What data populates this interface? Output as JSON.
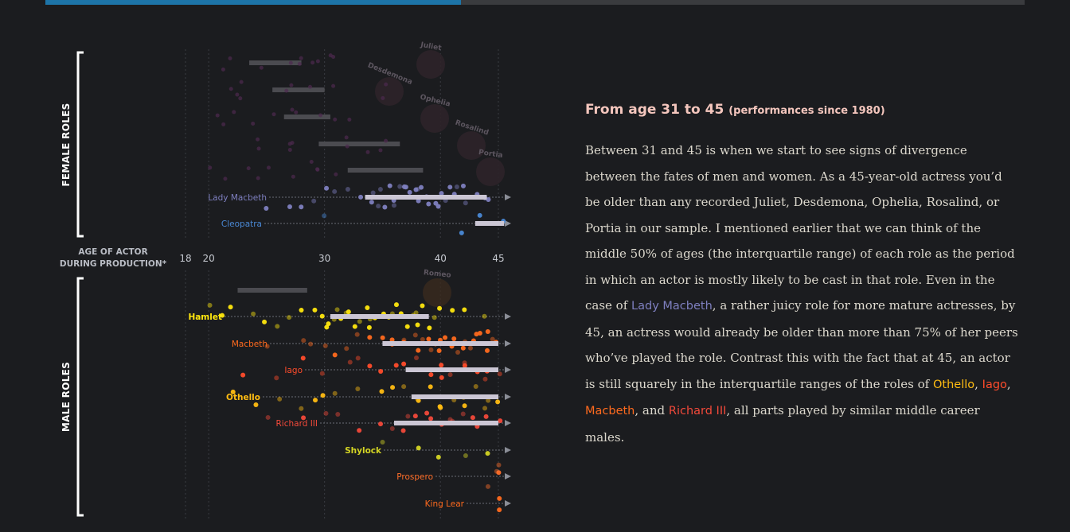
{
  "progress": {
    "fraction": 0.4243
  },
  "group_labels": {
    "female": "FEMALE ROLES",
    "male": "MALE ROLES"
  },
  "colors": {
    "lady_macbeth": "#7e7fbf",
    "cleopatra": "#4a89d6",
    "hamlet": "#ffe70e",
    "macbeth": "#ff6a1e",
    "iago": "#ff4c2b",
    "othello": "#ffbc12",
    "richard": "#f2493a",
    "shylock": "#d4d524",
    "prospero": "#ff6f2a",
    "king_lear": "#ff6a1e",
    "iqr_bar": "#cbc6d4",
    "ghost_bar": "#4b4b50"
  },
  "chart_data": {
    "type": "scatter",
    "title": "",
    "xlabel": "AGE OF ACTOR DURING PRODUCTION*",
    "ylabel": "",
    "xlim": [
      16,
      47
    ],
    "x_ticks": [
      18,
      20,
      30,
      40,
      45
    ],
    "grid": true,
    "ghost_roles": [
      {
        "name": "Juliet",
        "iqr": [
          23.5,
          28
        ]
      },
      {
        "name": "Desdemona",
        "iqr": [
          25.5,
          30
        ]
      },
      {
        "name": "Ophelia",
        "iqr": [
          26.5,
          30.5
        ]
      },
      {
        "name": "Rosalind",
        "iqr": [
          29.5,
          36.5
        ]
      },
      {
        "name": "Portia",
        "iqr": [
          32,
          38.5
        ]
      }
    ],
    "female_roles": [
      {
        "name": "Lady Macbeth",
        "color_key": "lady_macbeth",
        "iqr": [
          33.5,
          44
        ],
        "ages": [
          30,
          31,
          34,
          34.5,
          35,
          35.5,
          36,
          36.5,
          37,
          37.5,
          38,
          38.5,
          39,
          39.5,
          40,
          40.5,
          41,
          41.5,
          42,
          43,
          44,
          27,
          28,
          25,
          33,
          35,
          36,
          37,
          38,
          39,
          40,
          41,
          29,
          32,
          34,
          36,
          38,
          42,
          44
        ]
      },
      {
        "name": "Cleopatra",
        "color_key": "cleopatra",
        "iqr": [
          43,
          45.5
        ],
        "ages": [
          30,
          42,
          43.5,
          45.5
        ]
      }
    ],
    "male_roles": [
      {
        "name": "Hamlet",
        "color_key": "hamlet",
        "iqr": [
          30.5,
          39
        ],
        "ages": [
          20,
          21,
          22,
          24,
          25,
          27,
          28,
          29,
          30,
          30.5,
          31,
          31.5,
          32,
          32.5,
          33,
          33.5,
          34,
          34.5,
          35,
          35.5,
          36,
          36.5,
          37,
          37.5,
          38,
          38.5,
          39,
          39.5,
          40,
          41,
          42,
          44,
          30,
          31,
          32,
          34,
          36,
          38,
          26
        ]
      },
      {
        "name": "Macbeth",
        "color_key": "macbeth",
        "iqr": [
          35,
          45
        ],
        "ages": [
          25,
          28,
          30,
          32,
          33,
          35,
          36,
          37,
          38,
          38.5,
          39,
          39.5,
          40,
          40.5,
          41,
          41.5,
          42,
          42.5,
          43,
          43.5,
          44,
          44.5,
          45,
          38,
          39,
          40,
          41,
          42,
          43,
          44,
          36,
          37,
          29,
          31,
          34
        ]
      },
      {
        "name": "Iago",
        "color_key": "iago",
        "iqr": [
          37,
          45
        ],
        "ages": [
          23,
          26,
          28,
          30,
          32,
          33,
          35,
          37,
          38,
          39,
          40,
          41,
          42,
          43,
          44,
          45,
          34,
          36,
          38,
          40,
          42,
          44
        ]
      },
      {
        "name": "Othello",
        "color_key": "othello",
        "iqr": [
          37.5,
          45
        ],
        "ages": [
          22,
          24,
          26,
          28,
          30,
          31,
          33,
          35,
          36,
          37,
          38,
          39,
          40,
          41,
          42,
          43,
          44,
          45,
          38,
          40,
          42,
          44,
          29
        ]
      },
      {
        "name": "Richard III",
        "color_key": "richard",
        "iqr": [
          36,
          45
        ],
        "ages": [
          25,
          28,
          30,
          31,
          33,
          35,
          36,
          37,
          38,
          39,
          40,
          41,
          42,
          43,
          44,
          45,
          37,
          39,
          41,
          43
        ]
      },
      {
        "name": "Shylock",
        "color_key": "shylock",
        "iqr": null,
        "ages": [
          35,
          38,
          40,
          42,
          44
        ]
      },
      {
        "name": "Prospero",
        "color_key": "prospero",
        "iqr": null,
        "ages": [
          44,
          45,
          45,
          45
        ]
      },
      {
        "name": "King Lear",
        "color_key": "king_lear",
        "iqr": null,
        "ages": [
          45,
          45
        ]
      }
    ]
  },
  "text": {
    "heading_main": "From age 31 to 45",
    "heading_sub": "(performances since 1980)",
    "p1": "Between 31 and 45 is when we start to see signs of divergence between the fates of men and women. As a 45-year-old actress you’d be older than any recorded Juliet, Desdemona, Ophelia, Rosalind, or Portia in our sample. I mentioned earlier that we can think of the middle 50% of ages (the interquartile range) of each role as the period in which an actor is mostly likely to be cast in that role. Even in the case of ",
    "lady_macbeth": "Lady Macbeth",
    "p2": ", a rather juicy role for more mature actresses, by 45, an actress would already be older than more than 75% of her peers who’ve played the role. Contrast this with the fact that at 45, an actor is still squarely in the interquartile ranges of the roles of ",
    "othello": "Othello",
    "sep1": ", ",
    "iago": "Iago",
    "sep2": ", ",
    "macbeth": "Macbeth",
    "sep3": ", and ",
    "richard": "Richard III",
    "p3": ", all parts played by similar middle career males."
  }
}
